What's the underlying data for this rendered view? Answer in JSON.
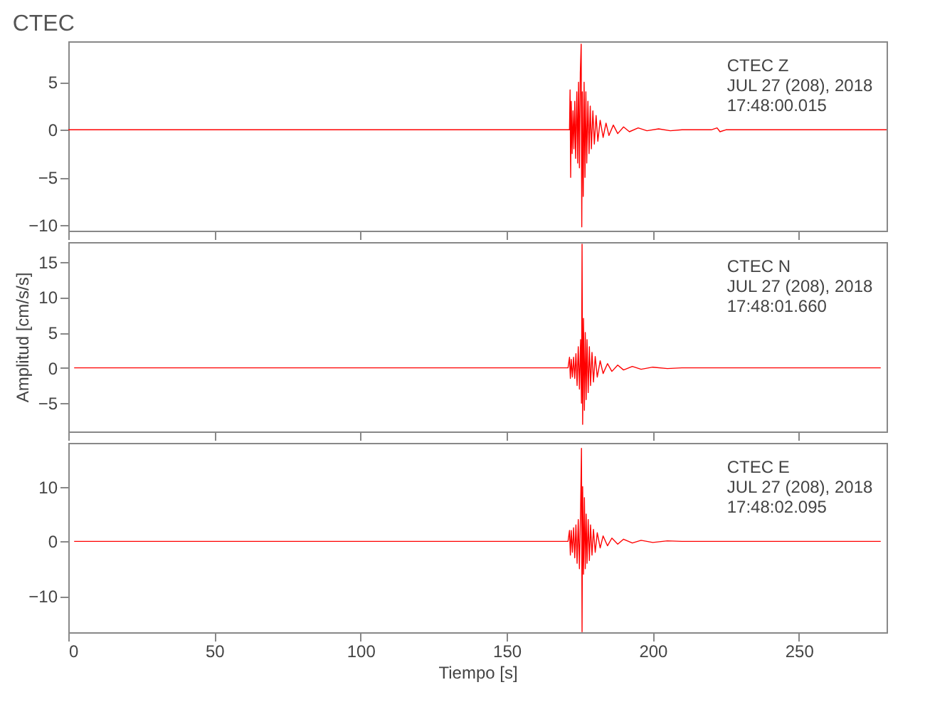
{
  "chart_data": [
    {
      "type": "line",
      "title": "CTEC",
      "xlim": [
        0,
        280
      ],
      "xticks": [
        0,
        50,
        100,
        150,
        200,
        250
      ],
      "ylim": [
        -10.6,
        9.3
      ],
      "yticks": [
        -10,
        -5,
        0,
        5
      ],
      "tick_labels": "y",
      "annotations": [
        "CTEC   Z",
        "JUL 27 (208), 2018",
        "17:48:00.015"
      ],
      "series": [
        {
          "color": "#ff0000",
          "x": [
            0,
            50,
            100,
            150,
            170,
            171.5,
            171.7,
            171.9,
            172.1,
            172.4,
            172.7,
            173,
            173.3,
            173.6,
            174,
            174.3,
            174.6,
            174.9,
            175.2,
            175.5,
            175.7,
            175.9,
            176.2,
            176.5,
            176.8,
            177.1,
            177.4,
            177.8,
            178.2,
            178.6,
            179,
            179.5,
            180,
            180.6,
            181.2,
            182,
            183,
            184,
            185,
            186.5,
            188,
            190,
            192,
            195,
            198,
            202,
            206,
            210,
            220,
            222,
            223,
            225,
            280
          ],
          "values": [
            0,
            0,
            0,
            0,
            0,
            0,
            4.2,
            -5,
            3,
            -2.5,
            2,
            -2,
            3,
            -3,
            4,
            -3.5,
            5,
            -4,
            6,
            9,
            -10.2,
            4,
            -7,
            5,
            -5,
            4,
            -3.5,
            3,
            -2.5,
            2.5,
            -2,
            2,
            -1.5,
            1.5,
            -1.2,
            1,
            -0.8,
            0.7,
            -0.6,
            0.5,
            -0.4,
            0.3,
            -0.2,
            0.2,
            -0.1,
            0.1,
            -0.1,
            0,
            0,
            0.2,
            -0.2,
            0,
            0
          ]
        }
      ]
    },
    {
      "type": "line",
      "ylabel": "Amplitud [cm/s/s]",
      "xlim": [
        0,
        280
      ],
      "xticks": [
        0,
        50,
        100,
        150,
        200,
        250
      ],
      "ylim": [
        -9,
        17.8
      ],
      "yticks": [
        -5,
        0,
        5,
        10,
        15
      ],
      "tick_labels": "y",
      "annotations": [
        "CTEC   N",
        "JUL 27 (208), 2018",
        "17:48:01.660"
      ],
      "series": [
        {
          "color": "#ff0000",
          "x": [
            2,
            50,
            100,
            150,
            171,
            171.5,
            171.8,
            172.1,
            172.5,
            172.9,
            173.3,
            173.7,
            174.1,
            174.5,
            174.9,
            175.3,
            175.6,
            175.8,
            176,
            176.3,
            176.6,
            176.9,
            177.2,
            177.5,
            177.9,
            178.3,
            178.7,
            179.2,
            179.7,
            180.3,
            181,
            182,
            183,
            184.5,
            186,
            188,
            190,
            193,
            196,
            200,
            205,
            210,
            278
          ],
          "values": [
            0,
            0,
            0,
            0,
            0,
            1.5,
            -1.5,
            1.2,
            -1.3,
            1.5,
            -1.5,
            2,
            -2.5,
            3,
            -3,
            4,
            -5,
            17.5,
            -8,
            7,
            -6,
            5,
            -4.5,
            4,
            -3.5,
            3,
            -2.5,
            2.2,
            -2,
            1.6,
            -1.3,
            1,
            -0.8,
            0.6,
            -0.5,
            0.4,
            -0.3,
            0.2,
            -0.2,
            0.1,
            -0.1,
            0,
            0
          ]
        }
      ]
    },
    {
      "type": "line",
      "xlabel": "Tiempo [s]",
      "xlim": [
        0,
        280
      ],
      "xticks": [
        0,
        50,
        100,
        150,
        200,
        250
      ],
      "ylim": [
        -16.6,
        18
      ],
      "yticks": [
        -10,
        0,
        10
      ],
      "annotations": [
        "CTEC   E",
        "JUL 27 (208), 2018",
        "17:48:02.095"
      ],
      "series": [
        {
          "color": "#ff0000",
          "x": [
            2,
            50,
            100,
            150,
            171,
            171.5,
            171.8,
            172.1,
            172.5,
            172.9,
            173.3,
            173.7,
            174.1,
            174.5,
            174.9,
            175.3,
            175.6,
            175.8,
            176,
            176.3,
            176.6,
            176.9,
            177.2,
            177.5,
            177.9,
            178.3,
            178.7,
            179.2,
            179.7,
            180.3,
            181,
            182,
            183,
            184.5,
            186,
            188,
            190,
            193,
            196,
            200,
            205,
            210,
            278
          ],
          "values": [
            0,
            0,
            0,
            0,
            0,
            2,
            -2.5,
            2,
            -2,
            2.5,
            -3,
            3,
            -4,
            4,
            -5,
            6,
            17,
            -16.5,
            10,
            -6,
            8,
            -5,
            5,
            -4,
            4,
            -3.5,
            3,
            -2.5,
            2.2,
            -2,
            1.6,
            -1.2,
            1,
            -0.8,
            0.6,
            -0.5,
            0.4,
            -0.3,
            0.2,
            -0.2,
            0.1,
            0,
            0
          ]
        }
      ]
    }
  ]
}
